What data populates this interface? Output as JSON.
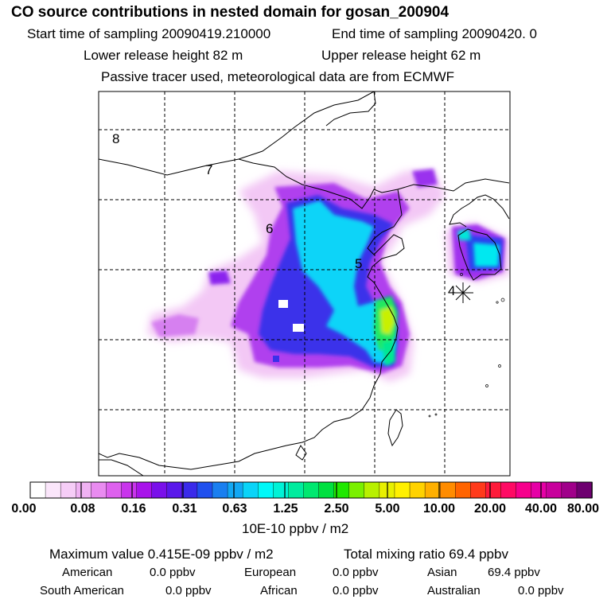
{
  "header": {
    "title": "CO  source contributions in nested domain for gosan_200904",
    "start_time": "Start time of sampling 20090419.210000",
    "end_time": "End time of sampling 20090420.     0",
    "lower_release": "Lower release height   82 m",
    "upper_release": "Upper release height   62 m",
    "tracer_note": "Passive tracer used, meteorological data are from ECMWF"
  },
  "map": {
    "contour_labels": [
      "8",
      "7",
      "6",
      "5",
      "4"
    ],
    "receptor_marker": "asterisk"
  },
  "colorbar": {
    "ticks": [
      "0.00",
      "0.08",
      "0.16",
      "0.31",
      "0.63",
      "1.25",
      "2.50",
      "5.00",
      "10.00",
      "20.00",
      "40.00",
      "80.00"
    ],
    "units": "10E-10 ppbv / m2",
    "colors": [
      "#ffffff",
      "#fbe6fb",
      "#f6cdf7",
      "#f0b2f3",
      "#e98bf0",
      "#de61ee",
      "#c935ec",
      "#a813ea",
      "#7a10ea",
      "#5a18ea",
      "#3a2aea",
      "#2050ee",
      "#1a7ff0",
      "#12a8f4",
      "#0ad4f8",
      "#00f8f8",
      "#00f2d6",
      "#00ec9e",
      "#00e870",
      "#00e040",
      "#20e800",
      "#7af000",
      "#b8f000",
      "#e8f000",
      "#fff000",
      "#ffd200",
      "#ffb000",
      "#ff8c00",
      "#ff6400",
      "#ff3a1a",
      "#ff1a3a",
      "#ff0a64",
      "#f6008c",
      "#e600a6",
      "#c8009c",
      "#a0008a",
      "#6e0070"
    ]
  },
  "stats": {
    "max_value": "Maximum value  0.415E-09 ppbv / m2",
    "total_mixing": "Total mixing ratio       69.4 ppbv",
    "sources": [
      {
        "name": "American",
        "value": "0.0 ppbv"
      },
      {
        "name": "European",
        "value": "0.0 ppbv"
      },
      {
        "name": "Asian",
        "value": "69.4 ppbv"
      },
      {
        "name": "South American",
        "value": "0.0 ppbv"
      },
      {
        "name": "African",
        "value": "0.0 ppbv"
      },
      {
        "name": "Australian",
        "value": "0.0 ppbv"
      }
    ]
  }
}
